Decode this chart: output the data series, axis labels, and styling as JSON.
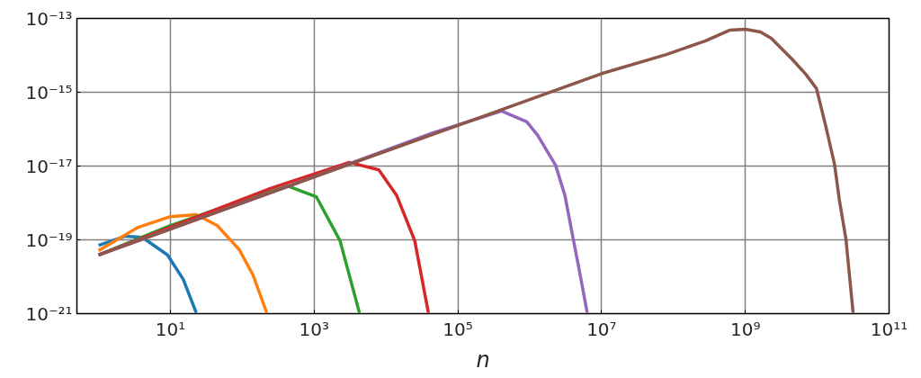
{
  "chart_data": {
    "type": "line",
    "xlabel": "n",
    "log": "xy",
    "grid": true,
    "marker": "none",
    "line_style": "solid",
    "xlim": [
      0.5,
      100000000000.0
    ],
    "ylim": [
      1e-21,
      1e-13
    ],
    "xticks": [
      {
        "value": 10,
        "label": "10¹"
      },
      {
        "value": 1000,
        "label": "10³"
      },
      {
        "value": 100000,
        "label": "10⁵"
      },
      {
        "value": 10000000,
        "label": "10⁷"
      },
      {
        "value": 1000000000,
        "label": "10⁹"
      },
      {
        "value": 100000000000,
        "label": "10¹¹"
      }
    ],
    "yticks": [
      {
        "value": 1e-21,
        "label": "10⁻²¹"
      },
      {
        "value": 1e-19,
        "label": "10⁻¹⁹"
      },
      {
        "value": 1e-17,
        "label": "10⁻¹⁷"
      },
      {
        "value": 1e-15,
        "label": "10⁻¹⁵"
      },
      {
        "value": 1e-13,
        "label": "10⁻¹³"
      }
    ],
    "series": [
      {
        "color": "#1f77b4",
        "x": [
          1,
          2.37,
          4.07,
          9.1,
          15.1,
          22.9
        ],
        "values": [
          7.1e-20,
          1.26e-19,
          1.17e-19,
          3.9e-20,
          8.5e-21,
          1.05e-21
        ]
      },
      {
        "color": "#ff7f0e",
        "x": [
          1,
          3.55,
          10,
          22.9,
          44.7,
          91,
          141,
          219
        ],
        "values": [
          5.1e-20,
          2.19e-19,
          4.27e-19,
          4.8e-19,
          2.45e-19,
          5.4e-20,
          1.12e-20,
          1.05e-21
        ]
      },
      {
        "color": "#2ca02c",
        "x": [
          1,
          10,
          100,
          427,
          1070,
          2290,
          4270
        ],
        "values": [
          3.9e-20,
          2.45e-19,
          1.17e-18,
          2.9e-18,
          1.48e-18,
          9.5e-20,
          1.05e-21
        ]
      },
      {
        "color": "#d62728",
        "x": [
          1,
          251,
          3090,
          7940,
          14100,
          25100,
          38900
        ],
        "values": [
          3.9e-20,
          2.5e-18,
          1.26e-17,
          7.9e-18,
          1.58e-18,
          9.5e-20,
          1.05e-21
        ]
      },
      {
        "color": "#9467bd",
        "x": [
          1,
          1000,
          44700,
          407000,
          912000,
          1290000,
          2290000,
          3090000,
          4070000,
          4900000,
          6310000
        ],
        "values": [
          3.9e-20,
          5.1e-18,
          7.9e-17,
          3.1e-16,
          1.58e-16,
          6.8e-17,
          1.05e-17,
          1.58e-18,
          9.5e-20,
          1.48e-20,
          1.05e-21
        ]
      },
      {
        "color": "#8c564b",
        "x": [
          1,
          10,
          1000,
          100000,
          10000000,
          79400000,
          275000000,
          603000000,
          1000000000,
          1620000000,
          2290000000,
          4470000000,
          6920000000,
          9770000000,
          13200000000,
          17400000000,
          20400000000,
          25100000000,
          31600000000
        ],
        "values": [
          3.9e-20,
          1.95e-19,
          5.1e-18,
          1.26e-16,
          3.2e-15,
          1.05e-14,
          2.45e-14,
          4.8e-14,
          5.1e-14,
          4.3e-14,
          2.9e-14,
          7.9e-15,
          3.1e-15,
          1.26e-15,
          1.17e-16,
          1.12e-17,
          1.17e-18,
          1.05e-19,
          1.05e-21
        ]
      }
    ]
  }
}
